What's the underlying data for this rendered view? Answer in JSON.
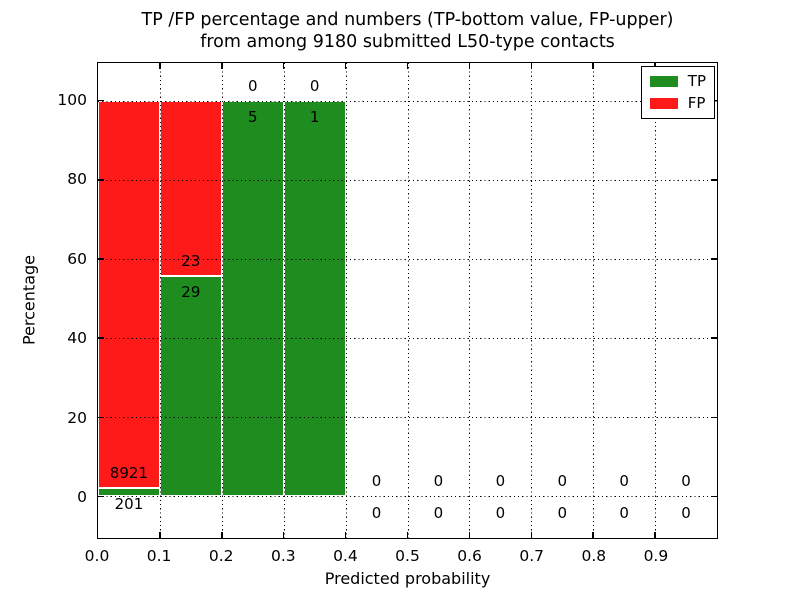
{
  "title": {
    "line1": "TP /FP percentage and numbers (TP-bottom value, FP-upper)",
    "line2": "from among 9180 submitted L50-type contacts"
  },
  "chart_data": {
    "type": "bar",
    "stacked": true,
    "title": "TP /FP percentage and numbers (TP-bottom value, FP-upper) from among 9180 submitted L50-type contacts",
    "xlabel": "Predicted probability",
    "ylabel": "Percentage",
    "total_contacts": 9180,
    "xlim": [
      0.0,
      1.0
    ],
    "ylim": [
      -10.5,
      109.5
    ],
    "x_tick_labels": [
      "0.0",
      "0.1",
      "0.2",
      "0.3",
      "0.4",
      "0.5",
      "0.6",
      "0.7",
      "0.8",
      "0.9"
    ],
    "x_tick_values": [
      0.0,
      0.1,
      0.2,
      0.3,
      0.4,
      0.5,
      0.6,
      0.7,
      0.8,
      0.9
    ],
    "x_grid_values": [
      0.1,
      0.2,
      0.3,
      0.4,
      0.5,
      0.6,
      0.7,
      0.8,
      0.9
    ],
    "y_tick_labels": [
      "0",
      "20",
      "40",
      "60",
      "80",
      "100"
    ],
    "y_tick_values": [
      0,
      20,
      40,
      60,
      80,
      100
    ],
    "grid_style": "dotted",
    "legend": [
      {
        "label": "TP",
        "color": "#1e8c1e"
      },
      {
        "label": "FP",
        "color": "#ff1a1a"
      }
    ],
    "legend_position": "upper right",
    "bins": [
      {
        "range": [
          0.0,
          0.1
        ],
        "tp": 201,
        "fp": 8921
      },
      {
        "range": [
          0.1,
          0.2
        ],
        "tp": 29,
        "fp": 23
      },
      {
        "range": [
          0.2,
          0.3
        ],
        "tp": 5,
        "fp": 0
      },
      {
        "range": [
          0.3,
          0.4
        ],
        "tp": 1,
        "fp": 0
      },
      {
        "range": [
          0.4,
          0.5
        ],
        "tp": 0,
        "fp": 0
      },
      {
        "range": [
          0.5,
          0.6
        ],
        "tp": 0,
        "fp": 0
      },
      {
        "range": [
          0.6,
          0.7
        ],
        "tp": 0,
        "fp": 0
      },
      {
        "range": [
          0.7,
          0.8
        ],
        "tp": 0,
        "fp": 0
      },
      {
        "range": [
          0.8,
          0.9
        ],
        "tp": 0,
        "fp": 0
      },
      {
        "range": [
          0.9,
          1.0
        ],
        "tp": 0,
        "fp": 0
      }
    ]
  },
  "colors": {
    "tp": "#1e8c1e",
    "fp": "#ff1a1a",
    "bar_edge": "#ffffff",
    "grid": "#000000",
    "text": "#000000",
    "background": "#ffffff"
  }
}
